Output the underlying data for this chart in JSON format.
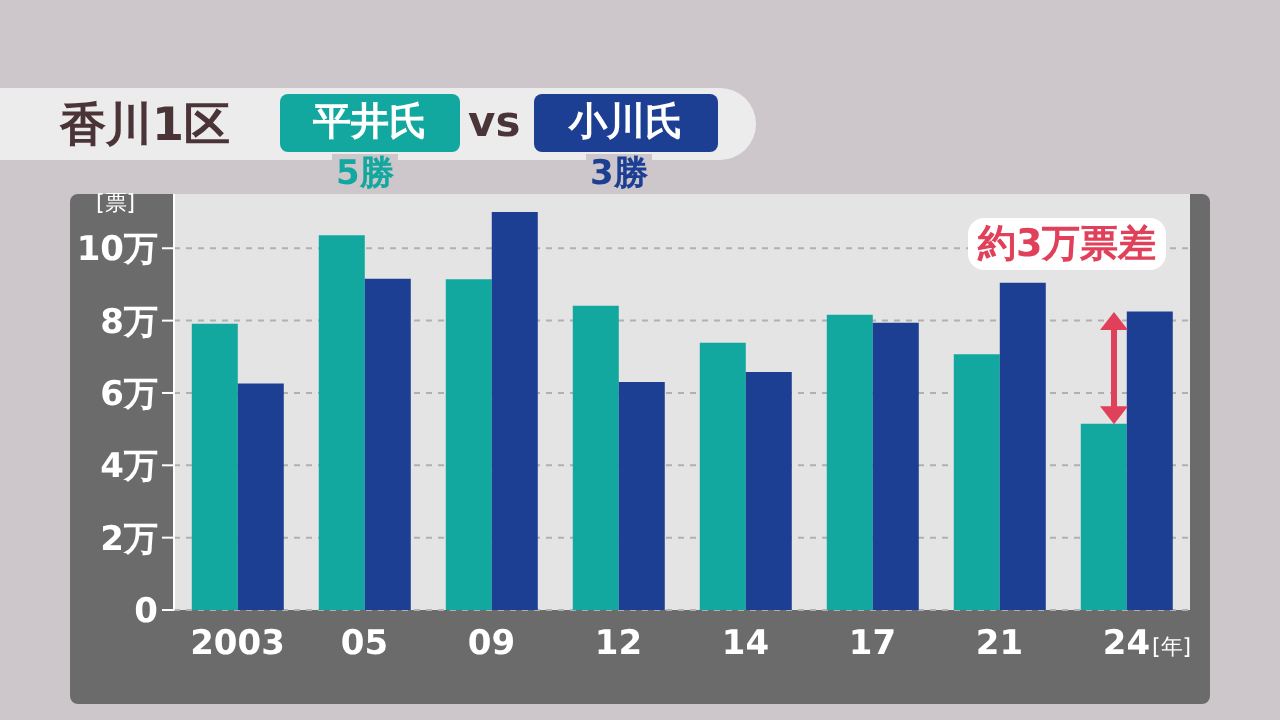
{
  "chart_data": {
    "type": "bar",
    "title": "香川1区",
    "xlabel": "[年]",
    "ylabel": "[票]",
    "categories": [
      "2003",
      "05",
      "09",
      "12",
      "14",
      "17",
      "21",
      "24"
    ],
    "series": [
      {
        "name": "平井氏",
        "color": "#12a89f",
        "values": [
          7.91,
          10.36,
          9.14,
          8.41,
          7.39,
          8.16,
          7.07,
          5.15
        ]
      },
      {
        "name": "小川氏",
        "color": "#1c3f94",
        "values": [
          6.26,
          9.16,
          11.0,
          6.3,
          6.58,
          7.94,
          9.05,
          8.25
        ]
      }
    ],
    "ylim": [
      0,
      11.5
    ],
    "yticks": [
      0,
      {
        "value": 2,
        "label": "2万"
      },
      {
        "value": 4,
        "label": "4万"
      },
      {
        "value": 6,
        "label": "6万"
      },
      {
        "value": 8,
        "label": "8万"
      },
      {
        "value": 10,
        "label": "10万"
      }
    ],
    "grid": "y",
    "legend": "top",
    "annotations": [
      "vs",
      "5勝",
      "3勝",
      "約3万票差"
    ]
  }
}
